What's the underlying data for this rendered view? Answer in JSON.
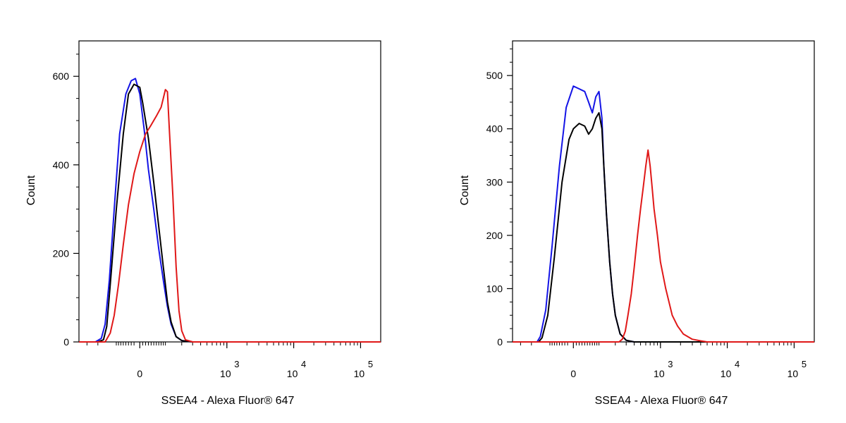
{
  "colors": {
    "blue": "#1414e6",
    "black": "#000000",
    "red": "#e01818"
  },
  "chart_data": [
    {
      "type": "line",
      "title": "",
      "xlabel": "SSEA4 - Alexa Fluor® 647",
      "ylabel": "Count",
      "x_scale": "biexponential",
      "xlim": [
        -400,
        200000
      ],
      "ylim": [
        0,
        680
      ],
      "y_ticks": [
        0,
        200,
        400,
        600
      ],
      "x_ticks": [
        {
          "value": 0,
          "label": "0"
        },
        {
          "value": 1000,
          "base": "10",
          "exp": "3"
        },
        {
          "value": 10000,
          "base": "10",
          "exp": "4"
        },
        {
          "value": 100000,
          "base": "10",
          "exp": "5"
        }
      ],
      "series": [
        {
          "color": "blue",
          "x": [
            -400,
            -220,
            -175,
            -150,
            -125,
            -100,
            -75,
            -50,
            -30,
            -15,
            0,
            15,
            30,
            50,
            70,
            90,
            110,
            130,
            160,
            200,
            300,
            1000,
            200000
          ],
          "y": [
            0,
            0,
            8,
            40,
            140,
            300,
            470,
            560,
            590,
            595,
            560,
            480,
            390,
            300,
            210,
            140,
            80,
            40,
            12,
            3,
            0,
            0,
            0
          ]
        },
        {
          "color": "black",
          "x": [
            -400,
            -200,
            -160,
            -140,
            -120,
            -90,
            -60,
            -40,
            -20,
            0,
            10,
            30,
            50,
            70,
            90,
            110,
            130,
            160,
            200,
            300,
            1000,
            200000
          ],
          "y": [
            0,
            0,
            5,
            35,
            130,
            300,
            470,
            560,
            582,
            575,
            540,
            460,
            360,
            260,
            170,
            90,
            45,
            12,
            3,
            0,
            0,
            0
          ]
        },
        {
          "color": "red",
          "x": [
            -400,
            -150,
            -120,
            -100,
            -80,
            -60,
            -40,
            -20,
            0,
            20,
            40,
            60,
            80,
            90,
            100,
            110,
            120,
            140,
            160,
            180,
            200,
            230,
            300,
            1000,
            200000
          ],
          "y": [
            0,
            0,
            20,
            60,
            130,
            220,
            310,
            380,
            430,
            470,
            490,
            510,
            530,
            550,
            570,
            565,
            480,
            330,
            170,
            70,
            25,
            5,
            0,
            0,
            0
          ]
        }
      ]
    },
    {
      "type": "line",
      "title": "",
      "xlabel": "SSEA4 - Alexa Fluor® 647",
      "ylabel": "Count",
      "x_scale": "biexponential",
      "xlim": [
        -400,
        200000
      ],
      "ylim": [
        0,
        565
      ],
      "y_ticks": [
        0,
        100,
        200,
        300,
        400,
        500
      ],
      "x_ticks": [
        {
          "value": 0,
          "label": "0"
        },
        {
          "value": 1000,
          "base": "10",
          "exp": "3"
        },
        {
          "value": 10000,
          "base": "10",
          "exp": "4"
        },
        {
          "value": 100000,
          "base": "10",
          "exp": "5"
        }
      ],
      "series": [
        {
          "color": "blue",
          "x": [
            -400,
            -160,
            -140,
            -110,
            -80,
            -50,
            -25,
            0,
            20,
            40,
            55,
            70,
            85,
            100,
            115,
            125,
            140,
            160,
            180,
            200,
            240,
            300,
            400,
            1000,
            200000
          ],
          "y": [
            0,
            0,
            10,
            60,
            180,
            330,
            440,
            480,
            475,
            470,
            450,
            430,
            460,
            470,
            420,
            330,
            240,
            150,
            90,
            50,
            15,
            3,
            0,
            0,
            0
          ]
        },
        {
          "color": "black",
          "x": [
            -400,
            -150,
            -130,
            -100,
            -70,
            -40,
            -15,
            0,
            20,
            40,
            55,
            70,
            85,
            100,
            115,
            125,
            140,
            160,
            180,
            200,
            240,
            300,
            400,
            1000,
            200000
          ],
          "y": [
            0,
            0,
            8,
            50,
            160,
            300,
            380,
            400,
            410,
            405,
            390,
            400,
            420,
            430,
            400,
            330,
            240,
            150,
            90,
            50,
            15,
            3,
            0,
            0,
            0
          ]
        },
        {
          "color": "red",
          "x": [
            -400,
            230,
            260,
            290,
            320,
            360,
            400,
            450,
            500,
            550,
            600,
            650,
            700,
            750,
            800,
            900,
            1000,
            1200,
            1500,
            1800,
            2200,
            3000,
            4000,
            5000,
            200000
          ],
          "y": [
            0,
            0,
            5,
            20,
            50,
            90,
            140,
            200,
            250,
            290,
            330,
            360,
            330,
            290,
            250,
            200,
            150,
            100,
            50,
            30,
            15,
            5,
            2,
            0,
            0
          ]
        }
      ]
    }
  ]
}
